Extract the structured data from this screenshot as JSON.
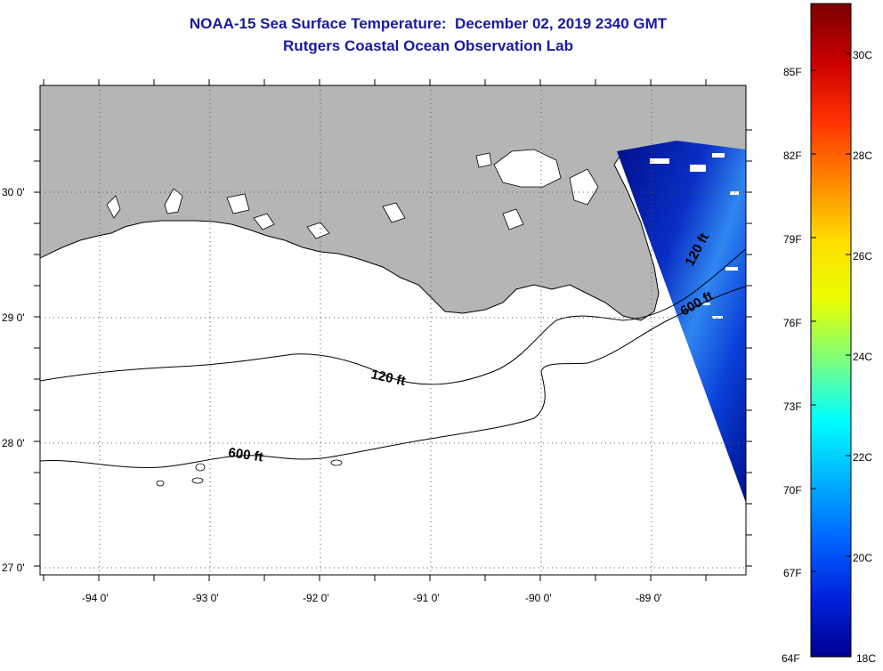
{
  "title": {
    "line1": "NOAA-15 Sea Surface Temperature:  December 02, 2019 2340 GMT",
    "line2": "Rutgers Coastal Ocean Observation Lab"
  },
  "map": {
    "lon_ticks": [
      "-94 0'",
      "-93 0'",
      "-92 0'",
      "-91 0'",
      "-90 0'",
      "-89 0'"
    ],
    "lat_ticks": [
      "30 0'",
      "29 0'",
      "28 0'",
      "27 0'"
    ],
    "contours": [
      {
        "depth": "120 ft"
      },
      {
        "depth": "600 ft"
      }
    ],
    "colors": {
      "land": "#b5b5b5",
      "water": "#ffffff",
      "sst_dark": "#00108c",
      "sst_mid": "#0a3fd8",
      "sst_light": "#2f86f0"
    }
  },
  "colorbar": {
    "fahrenheit": [
      "85F",
      "82F",
      "79F",
      "76F",
      "73F",
      "70F",
      "67F",
      "64F"
    ],
    "celsius": [
      "30C",
      "28C",
      "26C",
      "24C",
      "22C",
      "20C",
      "18C"
    ],
    "stops": [
      "#7a0000",
      "#cc0000",
      "#ff3300",
      "#ff8800",
      "#ffdd00",
      "#e8ff00",
      "#7dff7d",
      "#00ffff",
      "#00b4ff",
      "#0066ff",
      "#0022dd",
      "#000090"
    ]
  }
}
